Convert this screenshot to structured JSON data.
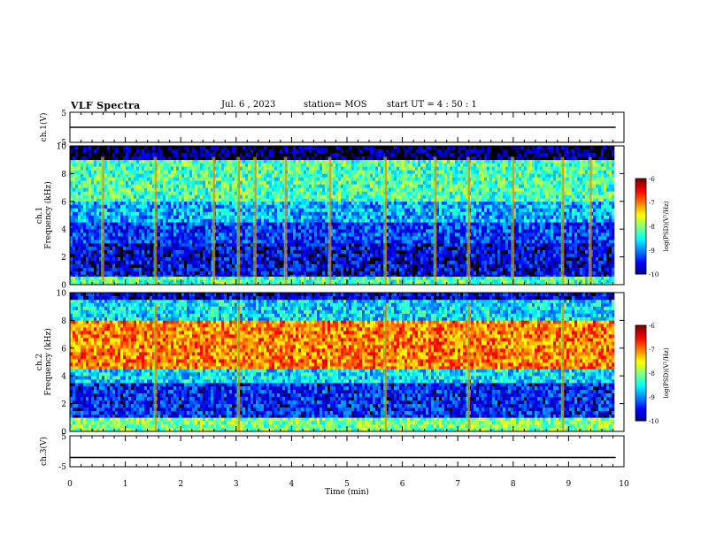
{
  "header": {
    "title": "VLF Spectra",
    "date": "Jul. 6 , 2023",
    "station": "station= MOS",
    "start": "start UT = 4 : 50 : 1"
  },
  "chart_data": [
    {
      "type": "line",
      "panel": "ch1-voltage",
      "ylabel": "ch.1(V)",
      "ylim": [
        -5,
        5
      ],
      "yticklabels": [
        "5",
        "-5"
      ],
      "xlim": [
        0,
        10
      ],
      "series": [
        {
          "values": [
            [
              0,
              0
            ],
            [
              9.85,
              0
            ]
          ]
        }
      ]
    },
    {
      "type": "heatmap",
      "panel": "ch1-spectrogram",
      "ylabel": "ch.1\nFrequency (kHz)",
      "ylim": [
        0,
        10
      ],
      "yticks": [
        0,
        2,
        4,
        6,
        8,
        10
      ],
      "xlim": [
        0,
        9.85
      ],
      "colorbar": {
        "label": "log(PSD)(V²/Hz)",
        "range": [
          -10,
          -6
        ],
        "ticks": [
          -6,
          -7,
          -8,
          -9,
          -10
        ]
      },
      "bands_khz": [
        {
          "f": [
            0.0,
            0.6
          ],
          "level": -8.2
        },
        {
          "f": [
            0.6,
            3.0
          ],
          "level": -9.6
        },
        {
          "f": [
            3.0,
            4.5
          ],
          "level": -9.3
        },
        {
          "f": [
            4.5,
            6.0
          ],
          "level": -8.8
        },
        {
          "f": [
            6.0,
            9.0
          ],
          "level": -8.2
        },
        {
          "f": [
            9.0,
            10.0
          ],
          "level": -10
        }
      ],
      "bursts_min": [
        0.6,
        1.55,
        2.6,
        3.05,
        3.35,
        3.9,
        4.7,
        5.7,
        6.6,
        7.2,
        8.0,
        8.9,
        9.4
      ]
    },
    {
      "type": "heatmap",
      "panel": "ch2-spectrogram",
      "ylabel": "ch.2\nFrequency (kHz)",
      "ylim": [
        0,
        10
      ],
      "yticks": [
        0,
        2,
        4,
        6,
        8,
        10
      ],
      "xlim": [
        0,
        9.85
      ],
      "colorbar": {
        "label": "log(PSD)(V²/Hz)",
        "range": [
          -10,
          -6
        ],
        "ticks": [
          -6,
          -7,
          -8,
          -9,
          -10
        ]
      },
      "bands_khz": [
        {
          "f": [
            0.0,
            1.0
          ],
          "level": -8.0
        },
        {
          "f": [
            1.0,
            3.5
          ],
          "level": -9.4
        },
        {
          "f": [
            3.5,
            4.5
          ],
          "level": -8.6
        },
        {
          "f": [
            4.5,
            8.0
          ],
          "level": -7.0
        },
        {
          "f": [
            8.0,
            9.5
          ],
          "level": -8.6
        },
        {
          "f": [
            9.5,
            10.0
          ],
          "level": -9.6
        }
      ],
      "bursts_min": [
        1.55,
        3.05,
        5.7,
        7.2,
        8.9
      ]
    },
    {
      "type": "line",
      "panel": "ch3-voltage",
      "ylabel": "ch.3(V)",
      "ylim": [
        -5,
        5
      ],
      "yticklabels": [
        "5",
        "-5"
      ],
      "xlim": [
        0,
        10
      ],
      "series": [
        {
          "values": [
            [
              0,
              -2
            ],
            [
              9.85,
              -2
            ]
          ]
        }
      ]
    }
  ],
  "xaxis": {
    "label": "Time (min)",
    "ticks": [
      "0",
      "1",
      "2",
      "3",
      "4",
      "5",
      "6",
      "7",
      "8",
      "9",
      "10"
    ]
  }
}
